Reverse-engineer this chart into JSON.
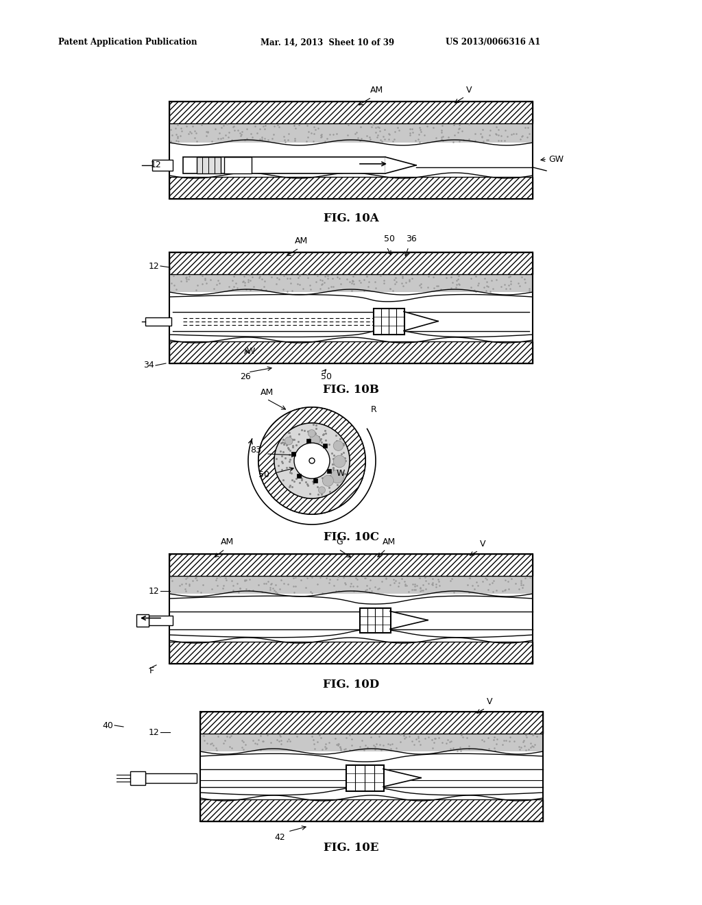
{
  "bg_color": "#ffffff",
  "header_left": "Patent Application Publication",
  "header_mid": "Mar. 14, 2013  Sheet 10 of 39",
  "header_right": "US 2013/0066316 A1",
  "fig_labels": [
    "FIG. 10A",
    "FIG. 10B",
    "FIG. 10C",
    "FIG. 10D",
    "FIG. 10E"
  ],
  "gray_plaque": "#d0d0d0",
  "gray_stipple": "#c8c8c8"
}
